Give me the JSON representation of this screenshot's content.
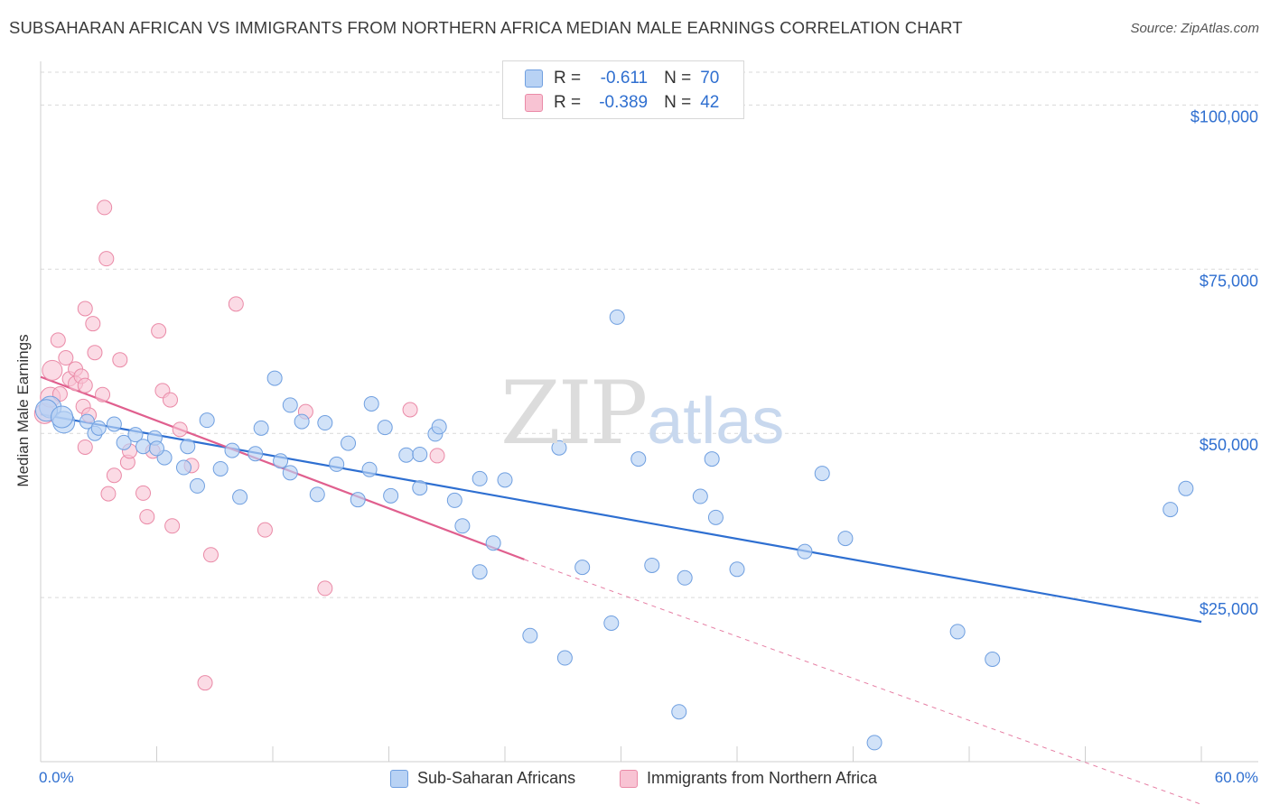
{
  "title": "SUBSAHARAN AFRICAN VS IMMIGRANTS FROM NORTHERN AFRICA MEDIAN MALE EARNINGS CORRELATION CHART",
  "source": "Source: ZipAtlas.com",
  "watermark": {
    "zip": "ZIP",
    "atlas": "atlas"
  },
  "legend": {
    "r_label": "R =",
    "n_label": "N =",
    "rows": [
      {
        "r": "-0.611",
        "n": "70"
      },
      {
        "r": "-0.389",
        "n": "42"
      }
    ]
  },
  "bottom_legend": {
    "series1": "Sub-Saharan Africans",
    "series2": "Immigrants from Northern Africa"
  },
  "colors": {
    "blue_fill": "#b8d2f4",
    "blue_stroke": "#6f9fe0",
    "blue_line": "#2e6fd1",
    "pink_fill": "#f8c3d3",
    "pink_stroke": "#ea8aa7",
    "pink_line": "#e05f8e",
    "grid": "#d9d9d9",
    "tick_text": "#2f6fd0"
  },
  "chart_data": {
    "type": "scatter",
    "title": "SUBSAHARAN AFRICAN VS IMMIGRANTS FROM NORTHERN AFRICA MEDIAN MALE EARNINGS CORRELATION CHART",
    "xlabel": "",
    "ylabel": "Median Male Earnings",
    "xlim": [
      0,
      60
    ],
    "ylim": [
      0,
      105000
    ],
    "x_tick_labels": [
      "0.0%",
      "60.0%"
    ],
    "y_ticks": [
      25000,
      50000,
      75000,
      100000
    ],
    "y_tick_labels": [
      "$25,000",
      "$50,000",
      "$75,000",
      "$100,000"
    ],
    "grid": true,
    "series": [
      {
        "name": "Sub-Saharan Africans",
        "r": -0.611,
        "n": 70,
        "trend": {
          "x0": 0.0,
          "y0": 52900,
          "x1": 60.0,
          "y1": 21300
        },
        "points": [
          [
            0.5,
            54000
          ],
          [
            1.2,
            51700
          ],
          [
            2.4,
            51800
          ],
          [
            2.8,
            50000
          ],
          [
            3.8,
            51400
          ],
          [
            4.3,
            48600
          ],
          [
            4.9,
            49800
          ],
          [
            5.3,
            48000
          ],
          [
            5.9,
            49300
          ],
          [
            6.4,
            46300
          ],
          [
            6.0,
            47700
          ],
          [
            7.4,
            44800
          ],
          [
            7.6,
            48000
          ],
          [
            8.1,
            42000
          ],
          [
            8.6,
            52000
          ],
          [
            9.3,
            44600
          ],
          [
            9.9,
            47400
          ],
          [
            10.3,
            40300
          ],
          [
            11.1,
            46900
          ],
          [
            11.4,
            50800
          ],
          [
            12.1,
            58400
          ],
          [
            12.4,
            45800
          ],
          [
            12.9,
            44000
          ],
          [
            12.9,
            54300
          ],
          [
            13.5,
            51800
          ],
          [
            14.3,
            40700
          ],
          [
            14.7,
            51600
          ],
          [
            15.3,
            45300
          ],
          [
            15.9,
            48500
          ],
          [
            16.4,
            39900
          ],
          [
            17.0,
            44500
          ],
          [
            17.1,
            54500
          ],
          [
            17.8,
            50900
          ],
          [
            18.1,
            40500
          ],
          [
            18.9,
            46700
          ],
          [
            19.6,
            46800
          ],
          [
            19.6,
            41700
          ],
          [
            20.4,
            49900
          ],
          [
            20.6,
            51000
          ],
          [
            21.4,
            39800
          ],
          [
            21.8,
            35900
          ],
          [
            22.7,
            43100
          ],
          [
            22.7,
            28900
          ],
          [
            23.4,
            33300
          ],
          [
            24.0,
            42900
          ],
          [
            25.3,
            19200
          ],
          [
            26.8,
            47800
          ],
          [
            27.1,
            15800
          ],
          [
            28.0,
            29600
          ],
          [
            29.8,
            67700
          ],
          [
            29.5,
            21100
          ],
          [
            30.9,
            46100
          ],
          [
            31.6,
            29900
          ],
          [
            33.0,
            7600
          ],
          [
            33.3,
            28000
          ],
          [
            34.1,
            40400
          ],
          [
            34.7,
            46100
          ],
          [
            34.9,
            37200
          ],
          [
            36.0,
            29300
          ],
          [
            39.5,
            32000
          ],
          [
            40.4,
            43900
          ],
          [
            41.6,
            34000
          ],
          [
            43.1,
            2900
          ],
          [
            47.4,
            19800
          ],
          [
            49.2,
            15600
          ],
          [
            58.4,
            38400
          ],
          [
            59.2,
            41600
          ],
          [
            0.3,
            53500
          ],
          [
            1.1,
            52500
          ],
          [
            3.0,
            50800
          ]
        ]
      },
      {
        "name": "Immigrants from Northern Africa",
        "r": -0.389,
        "n": 42,
        "trend": {
          "x0": 0.0,
          "y0": 58600,
          "x1": 25.0,
          "y1": 30800,
          "dashed_x1": 60.0,
          "dashed_y1": -6500
        },
        "points": [
          [
            0.2,
            53000
          ],
          [
            0.5,
            55500
          ],
          [
            0.6,
            59600
          ],
          [
            0.9,
            64200
          ],
          [
            1.0,
            56000
          ],
          [
            1.3,
            61500
          ],
          [
            1.5,
            58300
          ],
          [
            1.8,
            57600
          ],
          [
            1.8,
            59800
          ],
          [
            2.1,
            58700
          ],
          [
            2.2,
            54100
          ],
          [
            2.3,
            47900
          ],
          [
            2.3,
            57300
          ],
          [
            2.3,
            69000
          ],
          [
            2.5,
            52800
          ],
          [
            2.7,
            66700
          ],
          [
            2.8,
            62300
          ],
          [
            3.2,
            55900
          ],
          [
            3.3,
            84400
          ],
          [
            3.4,
            76600
          ],
          [
            3.5,
            40800
          ],
          [
            3.8,
            43600
          ],
          [
            4.1,
            61200
          ],
          [
            4.5,
            45600
          ],
          [
            4.6,
            47300
          ],
          [
            5.3,
            40900
          ],
          [
            5.5,
            37300
          ],
          [
            5.8,
            47300
          ],
          [
            6.1,
            65600
          ],
          [
            6.3,
            56500
          ],
          [
            6.7,
            55100
          ],
          [
            6.8,
            35900
          ],
          [
            7.2,
            50600
          ],
          [
            7.8,
            45100
          ],
          [
            8.5,
            12000
          ],
          [
            8.8,
            31500
          ],
          [
            10.1,
            69700
          ],
          [
            11.6,
            35300
          ],
          [
            13.7,
            53300
          ],
          [
            14.7,
            26400
          ],
          [
            19.1,
            53600
          ],
          [
            20.5,
            46600
          ]
        ]
      }
    ]
  }
}
